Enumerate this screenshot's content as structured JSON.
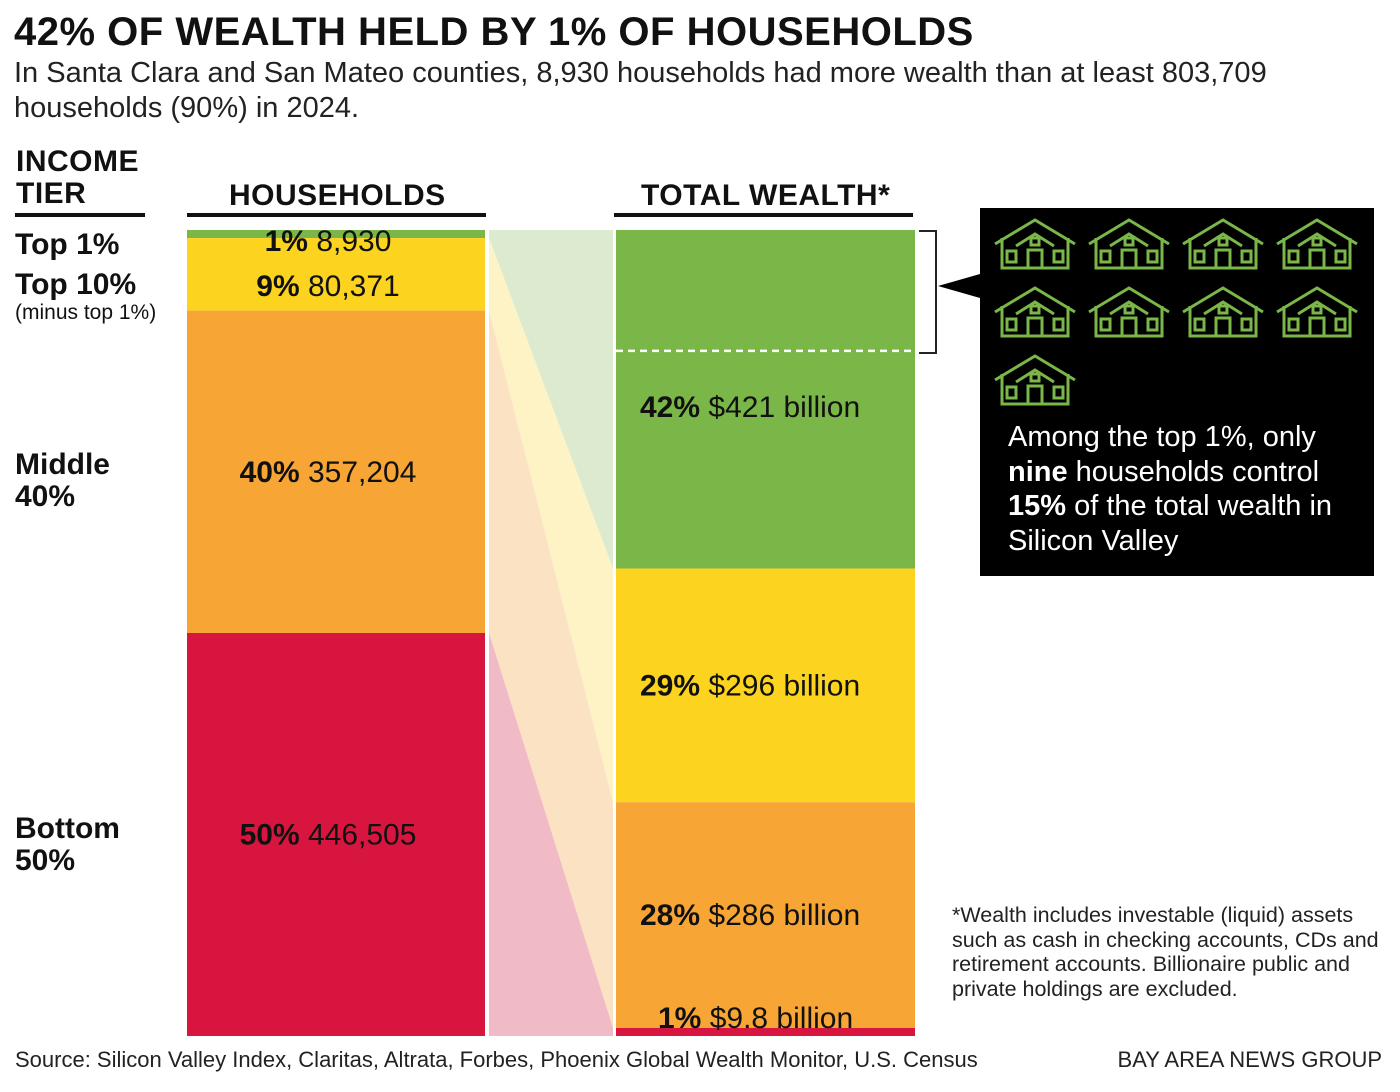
{
  "title": "42% OF WEALTH HELD BY 1% OF HOUSEHOLDS",
  "subtitle": "In Santa Clara and San Mateo counties, 8,930 households had more wealth than at least 803,709 households (90%) in 2024.",
  "headers": {
    "tier": "INCOME TIER",
    "households": "HOUSEHOLDS",
    "wealth": "TOTAL WEALTH*"
  },
  "tiers": [
    {
      "label": "Top 1%",
      "note": ""
    },
    {
      "label": "Top 10%",
      "note": "(minus top 1%)"
    },
    {
      "label": "Middle 40%",
      "note": ""
    },
    {
      "label": "Bottom 50%",
      "note": ""
    }
  ],
  "callout": {
    "house_count": 9,
    "text": "Among the top 1%, only <b>nine</b> households control <b>15%</b> of the total wealth in Silicon Valley"
  },
  "footnote": "*Wealth includes investable (liquid) assets such as cash in checking accounts, CDs and retirement accounts. Billionaire public and private holdings are excluded.",
  "source": "Source: Silicon Valley Index, Claritas, Altrata, Forbes, Phoenix Global Wealth Monitor, U.S. Census",
  "credit": "BAY AREA NEWS GROUP",
  "colors": {
    "top1": "#7ab648",
    "top10": "#fcd31e",
    "middle40": "#f7a535",
    "bottom50": "#d8153f",
    "flow_top1": "#dcebcf",
    "flow_top10": "#fdf3c4",
    "flow_middle40": "#fbe2c2",
    "flow_bottom50": "#f1bac7",
    "callout_bg": "#000000",
    "house_stroke": "#7ab648"
  },
  "chart_data": {
    "type": "stacked-bar",
    "categories": [
      "Top 1%",
      "Top 10% (minus top 1%)",
      "Middle 40%",
      "Bottom 50%"
    ],
    "series": [
      {
        "name": "HOUSEHOLDS",
        "percent": [
          1,
          9,
          40,
          50
        ],
        "values": [
          8930,
          80371,
          357204,
          446505
        ],
        "labels": [
          "8,930",
          "80,371",
          "357,204",
          "446,505"
        ]
      },
      {
        "name": "TOTAL WEALTH*",
        "percent": [
          42,
          29,
          28,
          1
        ],
        "values_billions": [
          421,
          296,
          286,
          9.8
        ],
        "labels": [
          "$421 billion",
          "$296 billion",
          "$286 billion",
          "$9.8 billion"
        ]
      }
    ],
    "highlight": {
      "tier": "Top 1%",
      "households": 9,
      "share_of_total_wealth_percent": 15
    }
  }
}
